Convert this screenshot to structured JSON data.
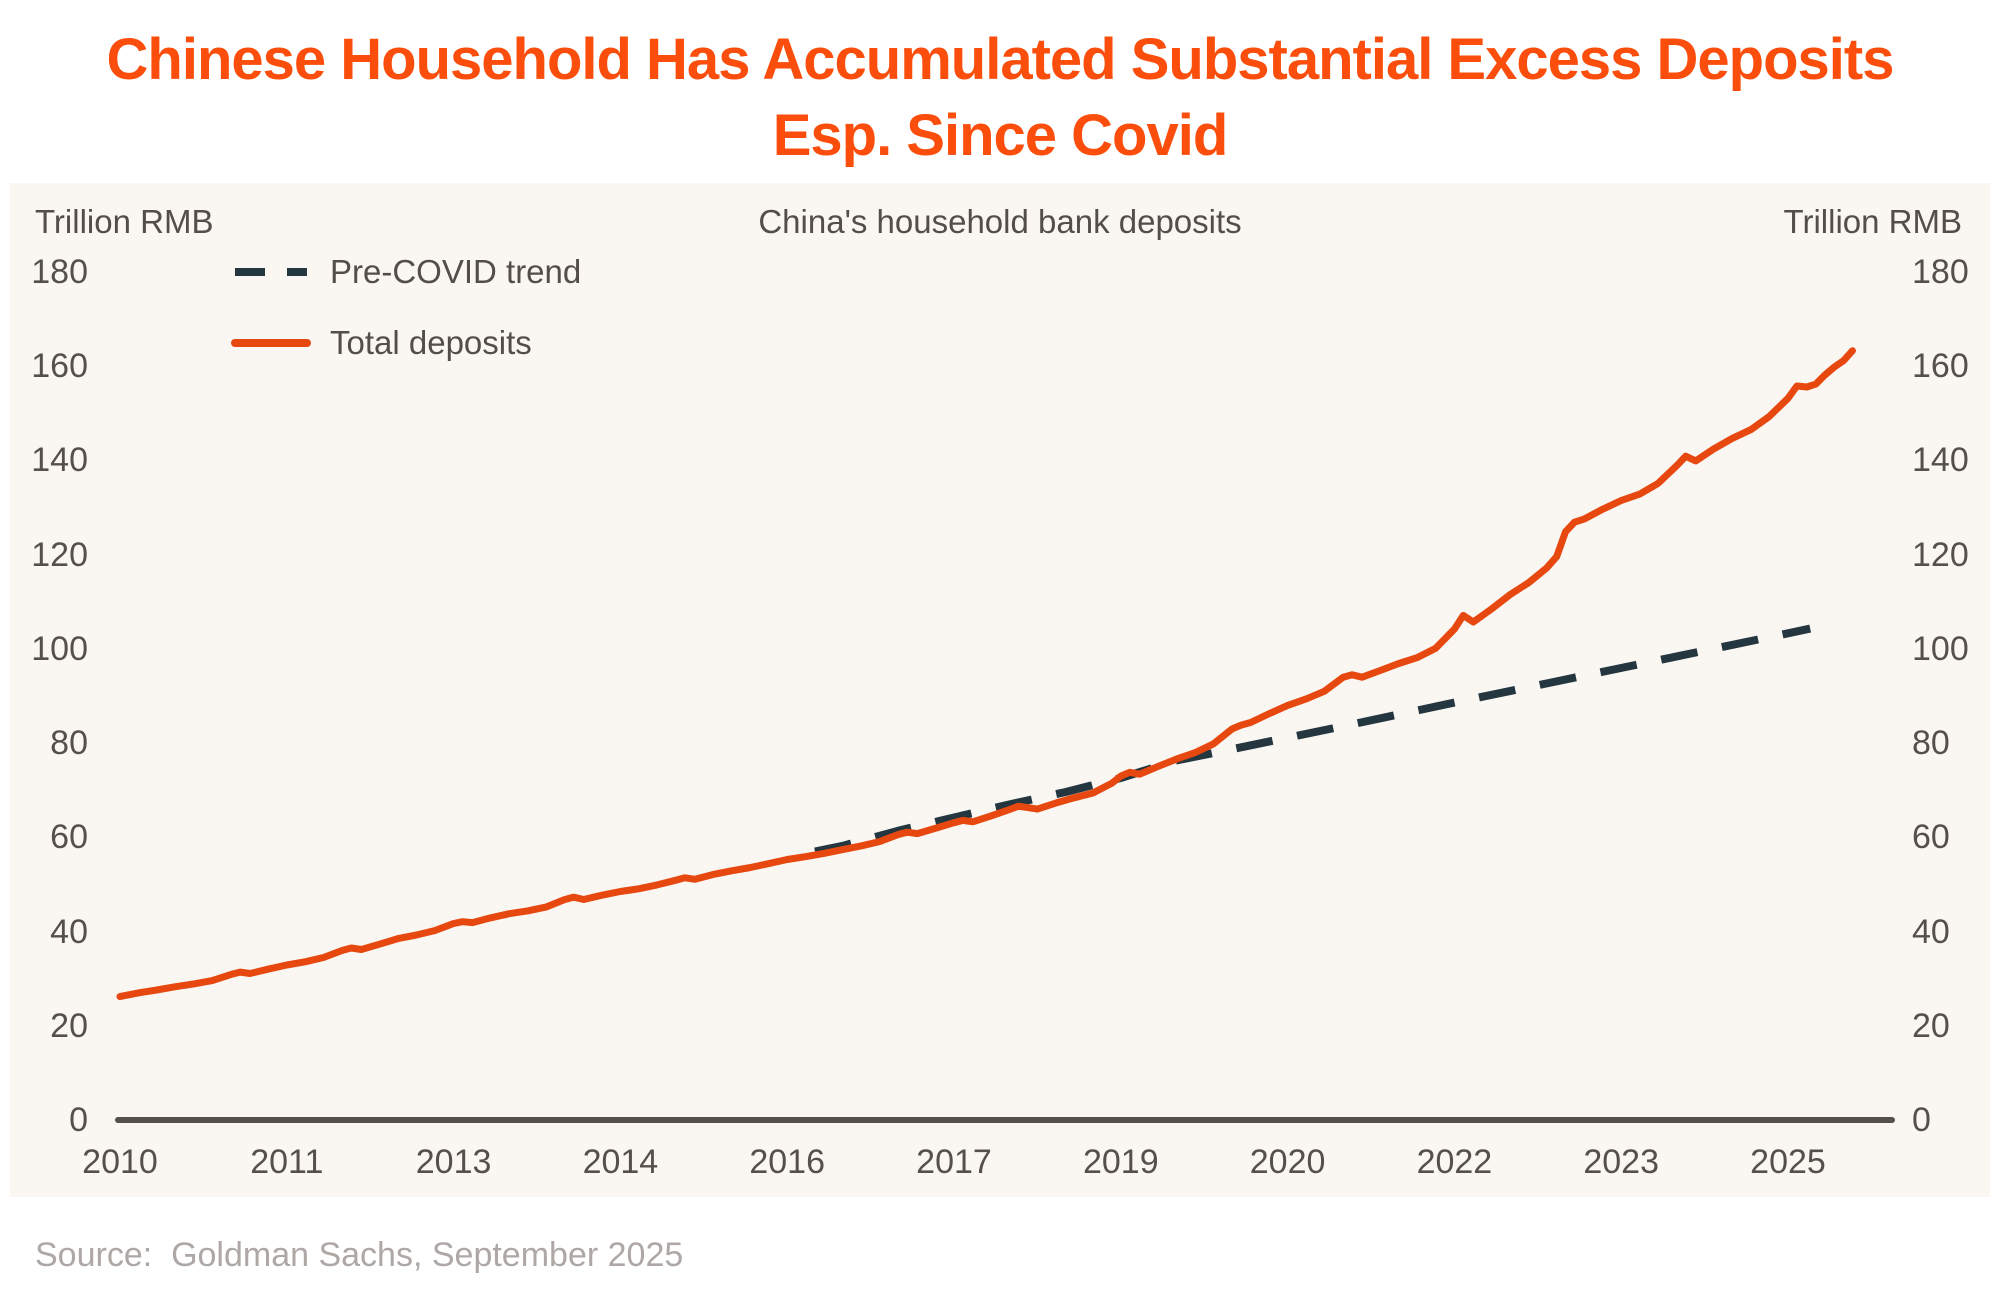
{
  "page": {
    "title_line1": "Chinese Household Has Accumulated Substantial Excess Deposits",
    "title_line2": "Esp. Since Covid",
    "source": "Source:  Goldman Sachs, September 2025"
  },
  "chart_data": {
    "type": "line",
    "title": "China's household bank deposits",
    "left_axis_label": "Trillion RMB",
    "right_axis_label": "Trillion RMB",
    "ylim": [
      0,
      180
    ],
    "y_tick_step": 20,
    "y_ticks": [
      180,
      160,
      140,
      120,
      100,
      80,
      60,
      40,
      20,
      0
    ],
    "x_tick_labels": [
      "2010",
      "2011",
      "2013",
      "2014",
      "2016",
      "2017",
      "2019",
      "2020",
      "2022",
      "2023",
      "2025"
    ],
    "x_tick_times": [
      2010.0,
      2011.5,
      2013.0,
      2014.5,
      2016.0,
      2017.5,
      2019.0,
      2020.5,
      2022.0,
      2023.5,
      2025.0
    ],
    "xlim": [
      2010.0,
      2025.67
    ],
    "grid": false,
    "legend_position": "top-left",
    "colors": {
      "title_orange": "#FB4E0C",
      "deposits_line": "#E7480F",
      "trend_line": "#24363F",
      "axis": "#56504D",
      "tick_text": "#56504D",
      "header_text": "#544E4B",
      "source_text": "#ADA8A5",
      "panel_background": "#FAF7F3",
      "page_background": "#FFFFFF"
    },
    "series": [
      {
        "name": "Pre-COVID trend",
        "style": "dashed",
        "color": "#24363F",
        "points": [
          [
            2016.25,
            57.0
          ],
          [
            2016.5,
            58.2
          ],
          [
            2017.0,
            61.4
          ],
          [
            2017.5,
            64.2
          ],
          [
            2018.0,
            67.0
          ],
          [
            2018.5,
            69.6
          ],
          [
            2019.0,
            72.6
          ],
          [
            2019.5,
            76.3
          ],
          [
            2020.0,
            78.7
          ],
          [
            2021.0,
            83.6
          ],
          [
            2022.0,
            88.6
          ],
          [
            2023.0,
            93.5
          ],
          [
            2024.0,
            98.4
          ],
          [
            2025.0,
            103.3
          ],
          [
            2025.2,
            104.3
          ]
        ]
      },
      {
        "name": "Total deposits",
        "style": "solid",
        "color": "#E7480F",
        "points": [
          [
            2010.0,
            26.2
          ],
          [
            2010.17,
            27.0
          ],
          [
            2010.33,
            27.6
          ],
          [
            2010.5,
            28.3
          ],
          [
            2010.67,
            28.9
          ],
          [
            2010.83,
            29.6
          ],
          [
            2011.0,
            30.9
          ],
          [
            2011.08,
            31.4
          ],
          [
            2011.17,
            31.1
          ],
          [
            2011.33,
            32.0
          ],
          [
            2011.5,
            32.9
          ],
          [
            2011.67,
            33.6
          ],
          [
            2011.83,
            34.5
          ],
          [
            2012.0,
            36.0
          ],
          [
            2012.08,
            36.5
          ],
          [
            2012.17,
            36.2
          ],
          [
            2012.33,
            37.3
          ],
          [
            2012.5,
            38.5
          ],
          [
            2012.67,
            39.3
          ],
          [
            2012.83,
            40.2
          ],
          [
            2013.0,
            41.7
          ],
          [
            2013.08,
            42.1
          ],
          [
            2013.17,
            41.9
          ],
          [
            2013.33,
            42.9
          ],
          [
            2013.5,
            43.8
          ],
          [
            2013.67,
            44.4
          ],
          [
            2013.83,
            45.2
          ],
          [
            2014.0,
            46.8
          ],
          [
            2014.08,
            47.3
          ],
          [
            2014.17,
            46.8
          ],
          [
            2014.33,
            47.7
          ],
          [
            2014.5,
            48.5
          ],
          [
            2014.67,
            49.1
          ],
          [
            2014.83,
            49.9
          ],
          [
            2015.0,
            50.9
          ],
          [
            2015.08,
            51.4
          ],
          [
            2015.17,
            51.1
          ],
          [
            2015.33,
            52.1
          ],
          [
            2015.5,
            52.9
          ],
          [
            2015.67,
            53.6
          ],
          [
            2015.83,
            54.4
          ],
          [
            2016.0,
            55.3
          ],
          [
            2016.17,
            55.9
          ],
          [
            2016.33,
            56.6
          ],
          [
            2016.5,
            57.4
          ],
          [
            2016.67,
            58.2
          ],
          [
            2016.83,
            59.1
          ],
          [
            2017.0,
            60.6
          ],
          [
            2017.08,
            61.1
          ],
          [
            2017.17,
            60.8
          ],
          [
            2017.33,
            61.9
          ],
          [
            2017.5,
            63.1
          ],
          [
            2017.58,
            63.6
          ],
          [
            2017.67,
            63.3
          ],
          [
            2017.83,
            64.5
          ],
          [
            2018.0,
            65.9
          ],
          [
            2018.08,
            66.6
          ],
          [
            2018.25,
            66.0
          ],
          [
            2018.42,
            67.3
          ],
          [
            2018.58,
            68.4
          ],
          [
            2018.75,
            69.4
          ],
          [
            2018.92,
            71.5
          ],
          [
            2019.0,
            73.0
          ],
          [
            2019.08,
            73.8
          ],
          [
            2019.17,
            73.4
          ],
          [
            2019.33,
            75.0
          ],
          [
            2019.5,
            76.6
          ],
          [
            2019.67,
            78.0
          ],
          [
            2019.83,
            79.8
          ],
          [
            2020.0,
            83.0
          ],
          [
            2020.08,
            83.8
          ],
          [
            2020.17,
            84.4
          ],
          [
            2020.33,
            86.2
          ],
          [
            2020.5,
            88.0
          ],
          [
            2020.67,
            89.4
          ],
          [
            2020.83,
            91.0
          ],
          [
            2021.0,
            94.0
          ],
          [
            2021.08,
            94.5
          ],
          [
            2021.17,
            94.0
          ],
          [
            2021.33,
            95.4
          ],
          [
            2021.5,
            96.9
          ],
          [
            2021.67,
            98.2
          ],
          [
            2021.83,
            100.1
          ],
          [
            2022.0,
            104.2
          ],
          [
            2022.08,
            107.1
          ],
          [
            2022.17,
            105.7
          ],
          [
            2022.33,
            108.4
          ],
          [
            2022.5,
            111.5
          ],
          [
            2022.67,
            114.1
          ],
          [
            2022.83,
            117.2
          ],
          [
            2022.92,
            119.6
          ],
          [
            2023.0,
            124.9
          ],
          [
            2023.08,
            126.9
          ],
          [
            2023.17,
            127.6
          ],
          [
            2023.33,
            129.6
          ],
          [
            2023.5,
            131.5
          ],
          [
            2023.67,
            132.9
          ],
          [
            2023.83,
            135.1
          ],
          [
            2024.0,
            138.9
          ],
          [
            2024.08,
            140.9
          ],
          [
            2024.17,
            139.9
          ],
          [
            2024.33,
            142.4
          ],
          [
            2024.5,
            144.7
          ],
          [
            2024.67,
            146.6
          ],
          [
            2024.83,
            149.3
          ],
          [
            2025.0,
            153.2
          ],
          [
            2025.08,
            155.8
          ],
          [
            2025.17,
            155.6
          ],
          [
            2025.25,
            156.2
          ],
          [
            2025.33,
            158.1
          ],
          [
            2025.42,
            159.9
          ],
          [
            2025.5,
            161.2
          ],
          [
            2025.58,
            163.3
          ]
        ]
      }
    ]
  }
}
